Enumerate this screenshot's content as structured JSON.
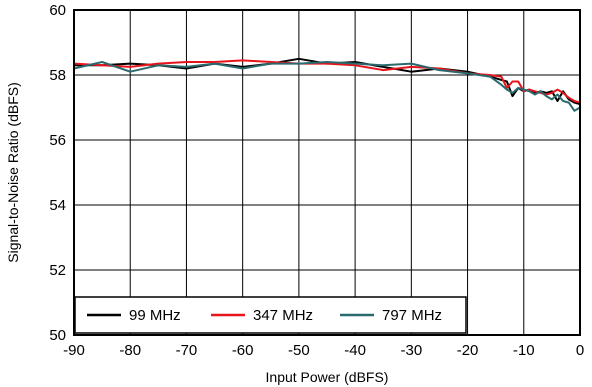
{
  "chart_data": {
    "type": "line",
    "title": "",
    "xlabel": "Input Power (dBFS)",
    "ylabel": "Signal-to-Noise Ratio (dBFS)",
    "xlim": [
      -90,
      0
    ],
    "ylim": [
      50,
      60
    ],
    "xticks": [
      -90,
      -80,
      -70,
      -60,
      -50,
      -40,
      -30,
      -20,
      -10,
      0
    ],
    "yticks": [
      50,
      52,
      54,
      56,
      58,
      60
    ],
    "grid": true,
    "legend_position": "bottom-left",
    "series": [
      {
        "name": "99 MHz",
        "color": "#000000",
        "x": [
          -90,
          -85,
          -80,
          -75,
          -70,
          -65,
          -60,
          -55,
          -50,
          -45,
          -40,
          -35,
          -30,
          -25,
          -20,
          -16,
          -14,
          -13,
          -12,
          -11,
          -10,
          -9,
          -8,
          -7,
          -6,
          -5,
          -4,
          -3,
          -2,
          -1,
          0
        ],
        "y": [
          58.3,
          58.3,
          58.35,
          58.3,
          58.2,
          58.35,
          58.25,
          58.35,
          58.5,
          58.35,
          58.4,
          58.25,
          58.1,
          58.2,
          58.1,
          57.95,
          57.85,
          57.8,
          57.35,
          57.6,
          57.5,
          57.55,
          57.45,
          57.5,
          57.45,
          57.5,
          57.2,
          57.5,
          57.25,
          57.15,
          57.1
        ]
      },
      {
        "name": "347 MHz",
        "color": "#e8141c",
        "x": [
          -90,
          -85,
          -80,
          -75,
          -70,
          -65,
          -60,
          -55,
          -50,
          -45,
          -40,
          -35,
          -30,
          -25,
          -20,
          -16,
          -14,
          -13,
          -12,
          -11,
          -10,
          -9,
          -8,
          -7,
          -6,
          -5,
          -4,
          -3,
          -2,
          -1,
          0
        ],
        "y": [
          58.35,
          58.3,
          58.25,
          58.35,
          58.4,
          58.4,
          58.45,
          58.4,
          58.35,
          58.35,
          58.3,
          58.15,
          58.25,
          58.2,
          58.05,
          58.0,
          57.95,
          57.6,
          57.8,
          57.8,
          57.5,
          57.55,
          57.5,
          57.45,
          57.4,
          57.45,
          57.55,
          57.45,
          57.3,
          57.2,
          57.15
        ]
      },
      {
        "name": "797 MHz",
        "color": "#2a6a6e",
        "x": [
          -90,
          -85,
          -80,
          -75,
          -70,
          -65,
          -60,
          -55,
          -50,
          -45,
          -40,
          -35,
          -30,
          -25,
          -20,
          -16,
          -14,
          -13,
          -12,
          -11,
          -10,
          -9,
          -8,
          -7,
          -6,
          -5,
          -4,
          -3,
          -2,
          -1,
          0
        ],
        "y": [
          58.2,
          58.4,
          58.1,
          58.3,
          58.25,
          58.35,
          58.2,
          58.35,
          58.35,
          58.4,
          58.35,
          58.3,
          58.35,
          58.15,
          58.05,
          57.95,
          57.7,
          57.55,
          57.45,
          57.6,
          57.55,
          57.5,
          57.4,
          57.5,
          57.35,
          57.25,
          57.4,
          57.2,
          57.15,
          56.9,
          57.0
        ]
      }
    ]
  }
}
